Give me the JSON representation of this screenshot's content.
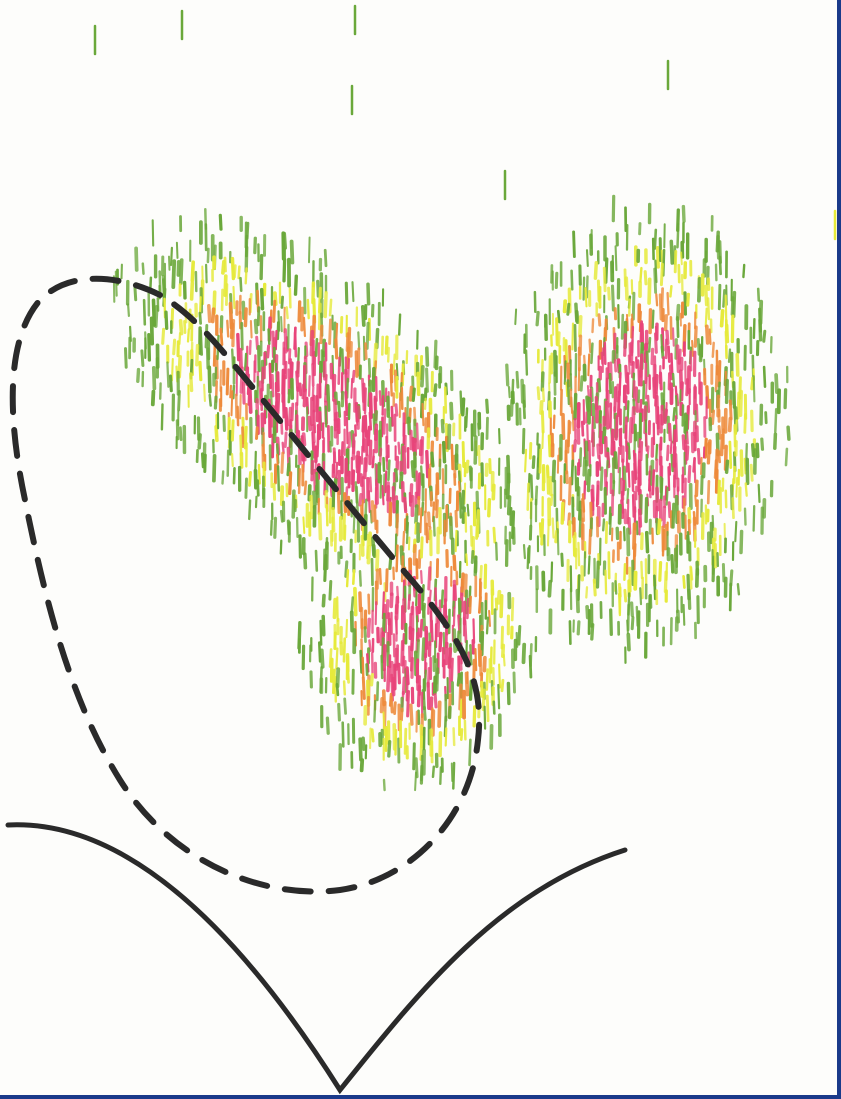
{
  "image": {
    "kind": "colored dash-texture illustration",
    "palette": {
      "background": "#fdfdfb",
      "frame": "#1a3a8a",
      "outline": "#2a2a2a",
      "green": "#6aa83a",
      "yellow": "#e6ea3a",
      "orange": "#ee8a3a",
      "pink": "#e8447a"
    }
  }
}
